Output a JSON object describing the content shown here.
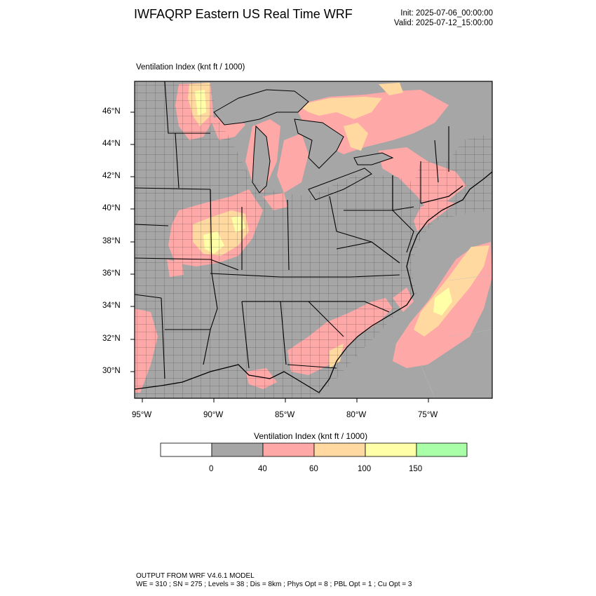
{
  "header": {
    "title": "IWFAQRP Eastern US Real Time WRF",
    "init": "Init: 2025-07-06_00:00:00",
    "valid": "Valid: 2025-07-12_15:00:00"
  },
  "map": {
    "field_label": "Ventilation Index   (knt ft / 1000)",
    "lat_labels": [
      "46°N",
      "44°N",
      "42°N",
      "40°N",
      "38°N",
      "36°N",
      "34°N",
      "32°N",
      "30°N"
    ],
    "lon_labels": [
      "95°W",
      "90°W",
      "85°W",
      "80°W",
      "75°W"
    ],
    "colors": {
      "land": "#a6a6a6",
      "water": "#a6a6a6",
      "pink": "#ffa8a8",
      "orange": "#ffd9a0",
      "yellow": "#ffffa8",
      "green": "#a8ffa8"
    }
  },
  "colorbar": {
    "title": "Ventilation Index  (knt ft / 1000)",
    "tick_labels": [
      "0",
      "40",
      "60",
      "100",
      "150"
    ],
    "colors": [
      "#ffffff",
      "#a6a6a6",
      "#ffa8a8",
      "#ffd9a0",
      "#ffffa8",
      "#a8ffa8"
    ]
  },
  "footer": {
    "line1": "OUTPUT FROM WRF V4.6.1 MODEL",
    "line2": "WE = 310 ; SN = 275 ; Levels = 38 ; Dis = 8km ; Phys Opt = 8 ; PBL Opt = 1 ; Cu Opt = 3"
  }
}
